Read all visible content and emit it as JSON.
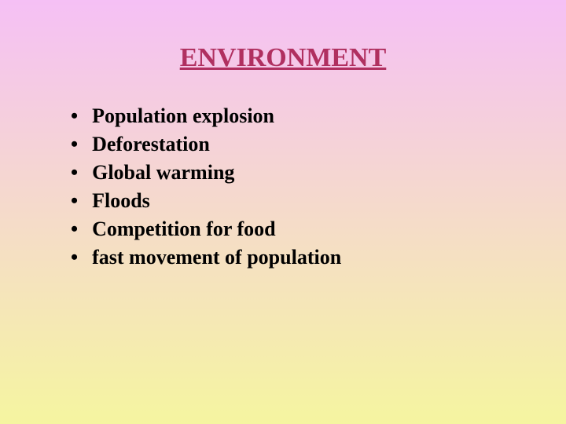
{
  "slide": {
    "background_gradient": {
      "top": "#f5c0f5",
      "bottom": "#f5f5a0"
    },
    "title": {
      "text": "ENVIRONMENT",
      "color": "#b03060",
      "fontsize": 34
    },
    "bullets": {
      "color": "#000000",
      "fontsize": 26,
      "dot_color": "#000000",
      "items": [
        "Population explosion",
        "Deforestation",
        "Global warming",
        "Floods",
        "Competition for food",
        "fast movement of population"
      ]
    }
  }
}
